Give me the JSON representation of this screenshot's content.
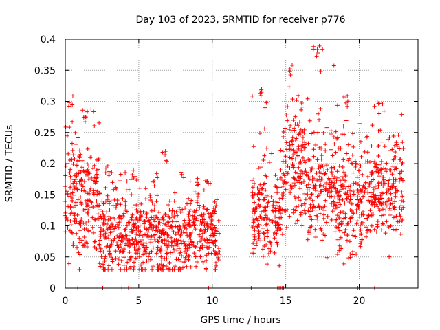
{
  "chart_data": {
    "type": "scatter",
    "title": "Day 103 of 2023, SRMTID for receiver p776",
    "xlabel": "GPS time / hours",
    "ylabel": "SRMTID / TECUs",
    "xlim": [
      0,
      24
    ],
    "ylim": [
      0,
      0.4
    ],
    "x_ticks": [
      0,
      5,
      10,
      15,
      20
    ],
    "x_tick_labels": [
      "0",
      "5",
      "10",
      "15",
      "20"
    ],
    "y_ticks": [
      0,
      0.05,
      0.1,
      0.15,
      0.2,
      0.25,
      0.3,
      0.35,
      0.4
    ],
    "y_tick_labels": [
      "0",
      "0.05",
      "0.1",
      "0.15",
      "0.2",
      "0.25",
      "0.3",
      "0.35",
      "0.4"
    ],
    "grid": true,
    "marker": "+",
    "series": [
      {
        "name": "SRMTID",
        "color": "#ff0000",
        "segments": [
          {
            "x_start": 0.0,
            "x_end": 0.9,
            "center": 0.15,
            "spread": 0.045,
            "spike": 0.31
          },
          {
            "x_start": 0.9,
            "x_end": 2.3,
            "center": 0.14,
            "spread": 0.045,
            "spike": 0.29
          },
          {
            "x_start": 2.3,
            "x_end": 3.8,
            "center": 0.09,
            "spread": 0.035,
            "spike": 0.2
          },
          {
            "x_start": 3.8,
            "x_end": 6.2,
            "center": 0.09,
            "spread": 0.035,
            "spike": 0.19
          },
          {
            "x_start": 6.2,
            "x_end": 8.4,
            "center": 0.075,
            "spread": 0.03,
            "spike": 0.22
          },
          {
            "x_start": 8.4,
            "x_end": 10.5,
            "center": 0.09,
            "spread": 0.03,
            "spike": 0.18
          },
          {
            "x_start": 12.7,
            "x_end": 14.8,
            "center": 0.12,
            "spread": 0.035,
            "spike": 0.32
          },
          {
            "x_start": 14.8,
            "x_end": 16.5,
            "center": 0.2,
            "spread": 0.05,
            "spike": 0.36
          },
          {
            "x_start": 16.5,
            "x_end": 18.5,
            "center": 0.16,
            "spread": 0.04,
            "spike": 0.39
          },
          {
            "x_start": 18.5,
            "x_end": 20.5,
            "center": 0.14,
            "spread": 0.04,
            "spike": 0.31
          },
          {
            "x_start": 20.5,
            "x_end": 23.0,
            "center": 0.16,
            "spread": 0.04,
            "spike": 0.3
          }
        ],
        "zero_points_x": [
          0.85,
          2.55,
          3.85,
          4.3,
          9.75,
          12.65,
          14.45,
          14.55,
          14.65,
          14.75,
          14.85,
          14.95,
          19.9,
          20.0,
          21.05
        ]
      }
    ]
  }
}
